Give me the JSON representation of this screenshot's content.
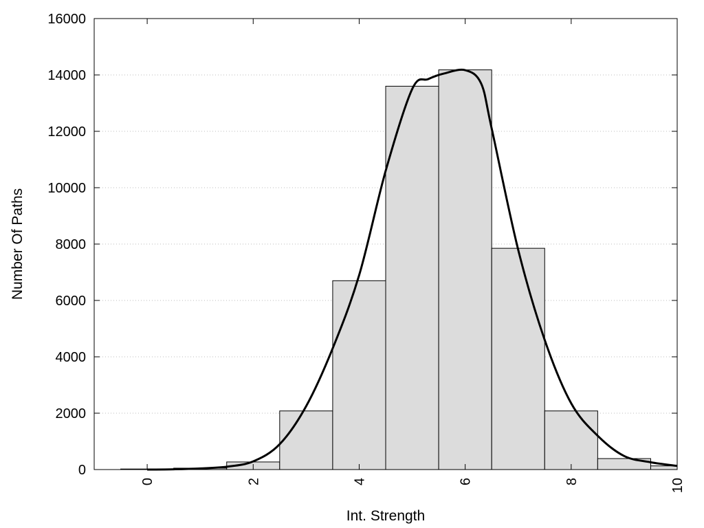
{
  "chart_data": {
    "type": "bar",
    "xlabel": "Int. Strength",
    "ylabel": "Number Of Paths",
    "xlim": [
      -1,
      10
    ],
    "ylim": [
      0,
      16000
    ],
    "x_ticks": [
      0,
      2,
      4,
      6,
      8,
      10
    ],
    "y_ticks": [
      0,
      2000,
      4000,
      6000,
      8000,
      10000,
      12000,
      14000,
      16000
    ],
    "grid": "horizontal dotted",
    "bar_width": 1,
    "bars": [
      {
        "x": 0,
        "value": 20
      },
      {
        "x": 1,
        "value": 50
      },
      {
        "x": 2,
        "value": 270
      },
      {
        "x": 3,
        "value": 2080
      },
      {
        "x": 4,
        "value": 6700
      },
      {
        "x": 5,
        "value": 13600
      },
      {
        "x": 6,
        "value": 14180
      },
      {
        "x": 7,
        "value": 7850
      },
      {
        "x": 8,
        "value": 2080
      },
      {
        "x": 9,
        "value": 390
      },
      {
        "x": 10,
        "value": 130
      }
    ],
    "curve": {
      "type": "line",
      "x": [
        0,
        0.5,
        1,
        1.5,
        2,
        2.5,
        3,
        3.5,
        4,
        4.5,
        5,
        5.3,
        5.6,
        6,
        6.3,
        6.5,
        7,
        7.5,
        8,
        8.5,
        9,
        9.5,
        10
      ],
      "y": [
        0,
        10,
        40,
        100,
        290,
        900,
        2250,
        4300,
        6900,
        10600,
        13500,
        13850,
        14050,
        14170,
        13700,
        12100,
        7800,
        4600,
        2350,
        1200,
        480,
        260,
        130
      ]
    },
    "colors": {
      "bar_fill": "#dcdcdc",
      "bar_stroke": "#000000",
      "curve": "#000000",
      "grid": "#bbbbbb"
    }
  }
}
